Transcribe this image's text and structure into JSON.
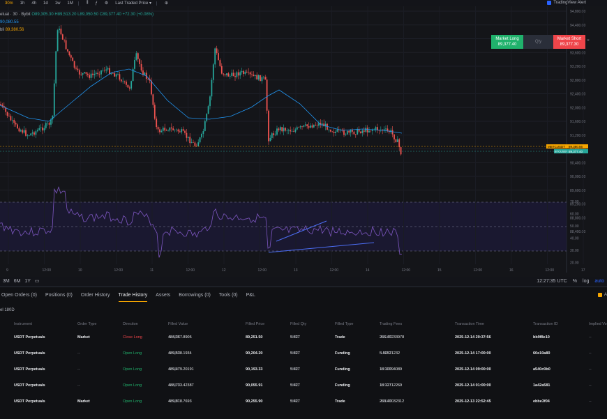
{
  "toolbar": {
    "timeframes": [
      "30m",
      "1h",
      "4h",
      "1d",
      "1w",
      "1M"
    ],
    "active_timeframe": "30m",
    "price_source": "Last Traded Price",
    "tv_alert": "TradingView Alert"
  },
  "legend": {
    "symbol_line": "etual · 30 · Bybit",
    "ohlc": "O89,305.30 H89,513.20 L89,050.50 C89,377.40 +72.30 (+0.08%)",
    "ma_value": "90,080.55",
    "last_label": "bli",
    "last_value": "89,380.56"
  },
  "trade_widget": {
    "long_label": "Market Long",
    "long_price": "89,377.40",
    "qty_label": "Qty",
    "short_label": "Market Short",
    "short_price": "89,377.30"
  },
  "price_axis": {
    "ticks": [
      "94,800.00",
      "94,400.00",
      "94,000.00",
      "93,600.00",
      "93,200.00",
      "92,800.00",
      "92,400.00",
      "92,000.00",
      "91,600.00",
      "91,200.00",
      "90,800.00",
      "90,400.00",
      "90,000.00",
      "89,600.00",
      "89,200.00",
      "88,800.00",
      "88,400.00"
    ],
    "tag_index": "MBTCUSDT",
    "tag_index_value": "89,380.56",
    "tag_perp": "BTCUSDT Perpetual",
    "tag_perp_value": "89,377.40"
  },
  "rsi_axis": {
    "ticks": [
      "70.00",
      "60.00",
      "50.00",
      "40.00",
      "30.00",
      "20.00"
    ]
  },
  "time_axis": {
    "ticks": [
      "9",
      "12:00",
      "10",
      "12:00",
      "11",
      "12:00",
      "12",
      "12:00",
      "13",
      "12:00",
      "14",
      "12:00",
      "15",
      "12:00",
      "16",
      "12:00",
      "17"
    ]
  },
  "chart_bottom": {
    "ranges": [
      "3M",
      "6M",
      "1Y"
    ],
    "clock": "12:27:35 UTC",
    "pct": "%",
    "log": "log",
    "auto": "auto"
  },
  "panel": {
    "tabs": [
      "Open Orders (0)",
      "Positions (0)",
      "Order History",
      "Trade History",
      "Assets",
      "Borrowings (0)",
      "Tools (0)",
      "P&L"
    ],
    "active_tab": "Trade History",
    "option_label": "A",
    "subtab": "el 180D",
    "columns": [
      "Instrument",
      "Order Type",
      "Direction",
      "Filled Value",
      "Filled Price",
      "Filled Qty",
      "Filled Type",
      "Trading Fees",
      "Transaction Time",
      "Transaction ID",
      "Implied Vo"
    ],
    "rows": [
      {
        "instrument": "USDT Perpetuals",
        "order_type": "Market",
        "direction": "Close Long",
        "filled_value": "484,367.8905",
        "value_unit": "USDT",
        "filled_price": "89,251.50",
        "filled_qty": "5.427",
        "qty_unit": "BTC",
        "filled_type": "Trade",
        "fees": "266.40233978",
        "fees_unit": "USDT",
        "time": "2025-12-14 20:37:56",
        "txid": "bb9f8e10",
        "iv": "--"
      },
      {
        "instrument": "USDT Perpetuals",
        "order_type": "--",
        "direction": "Open Long",
        "filled_value": "489,538.1934",
        "value_unit": "USDT",
        "filled_price": "90,204.20",
        "filled_qty": "5.427",
        "qty_unit": "BTC",
        "filled_type": "Funding",
        "fees": "5.60521232",
        "fees_unit": "USDT",
        "time": "2025-12-14 17:00:00",
        "txid": "60e10a80",
        "iv": "--"
      },
      {
        "instrument": "USDT Perpetuals",
        "order_type": "--",
        "direction": "Open Long",
        "filled_value": "489,479.20191",
        "value_unit": "USDT",
        "filled_price": "90,193.33",
        "filled_qty": "5.427",
        "qty_unit": "BTC",
        "filled_type": "Funding",
        "fees": "18.10094089",
        "fees_unit": "USDT",
        "time": "2025-12-14 09:00:00",
        "txid": "a540c0b0",
        "iv": "--"
      },
      {
        "instrument": "USDT Perpetuals",
        "order_type": "--",
        "direction": "Open Long",
        "filled_value": "488,733.42387",
        "value_unit": "USDT",
        "filled_price": "90,055.91",
        "filled_qty": "5.427",
        "qty_unit": "BTC",
        "filled_type": "Funding",
        "fees": "18.12712269",
        "fees_unit": "USDT",
        "time": "2025-12-14 01:00:00",
        "txid": "1a42a581",
        "iv": "--"
      },
      {
        "instrument": "USDT Perpetuals",
        "order_type": "Market",
        "direction": "Open Long",
        "filled_value": "489,818.7693",
        "value_unit": "USDT",
        "filled_price": "90,255.90",
        "filled_qty": "5.427",
        "qty_unit": "BTC",
        "filled_type": "Trade",
        "fees": "269.40032312",
        "fees_unit": "USDT",
        "time": "2025-12-13 22:52:45",
        "txid": "ebbe3f04",
        "iv": "--"
      }
    ]
  },
  "colors": {
    "up": "#26a69a",
    "down": "#ef5350",
    "ma": "#2196f3",
    "rsi": "#7e57c2",
    "accent": "#f7a600"
  }
}
